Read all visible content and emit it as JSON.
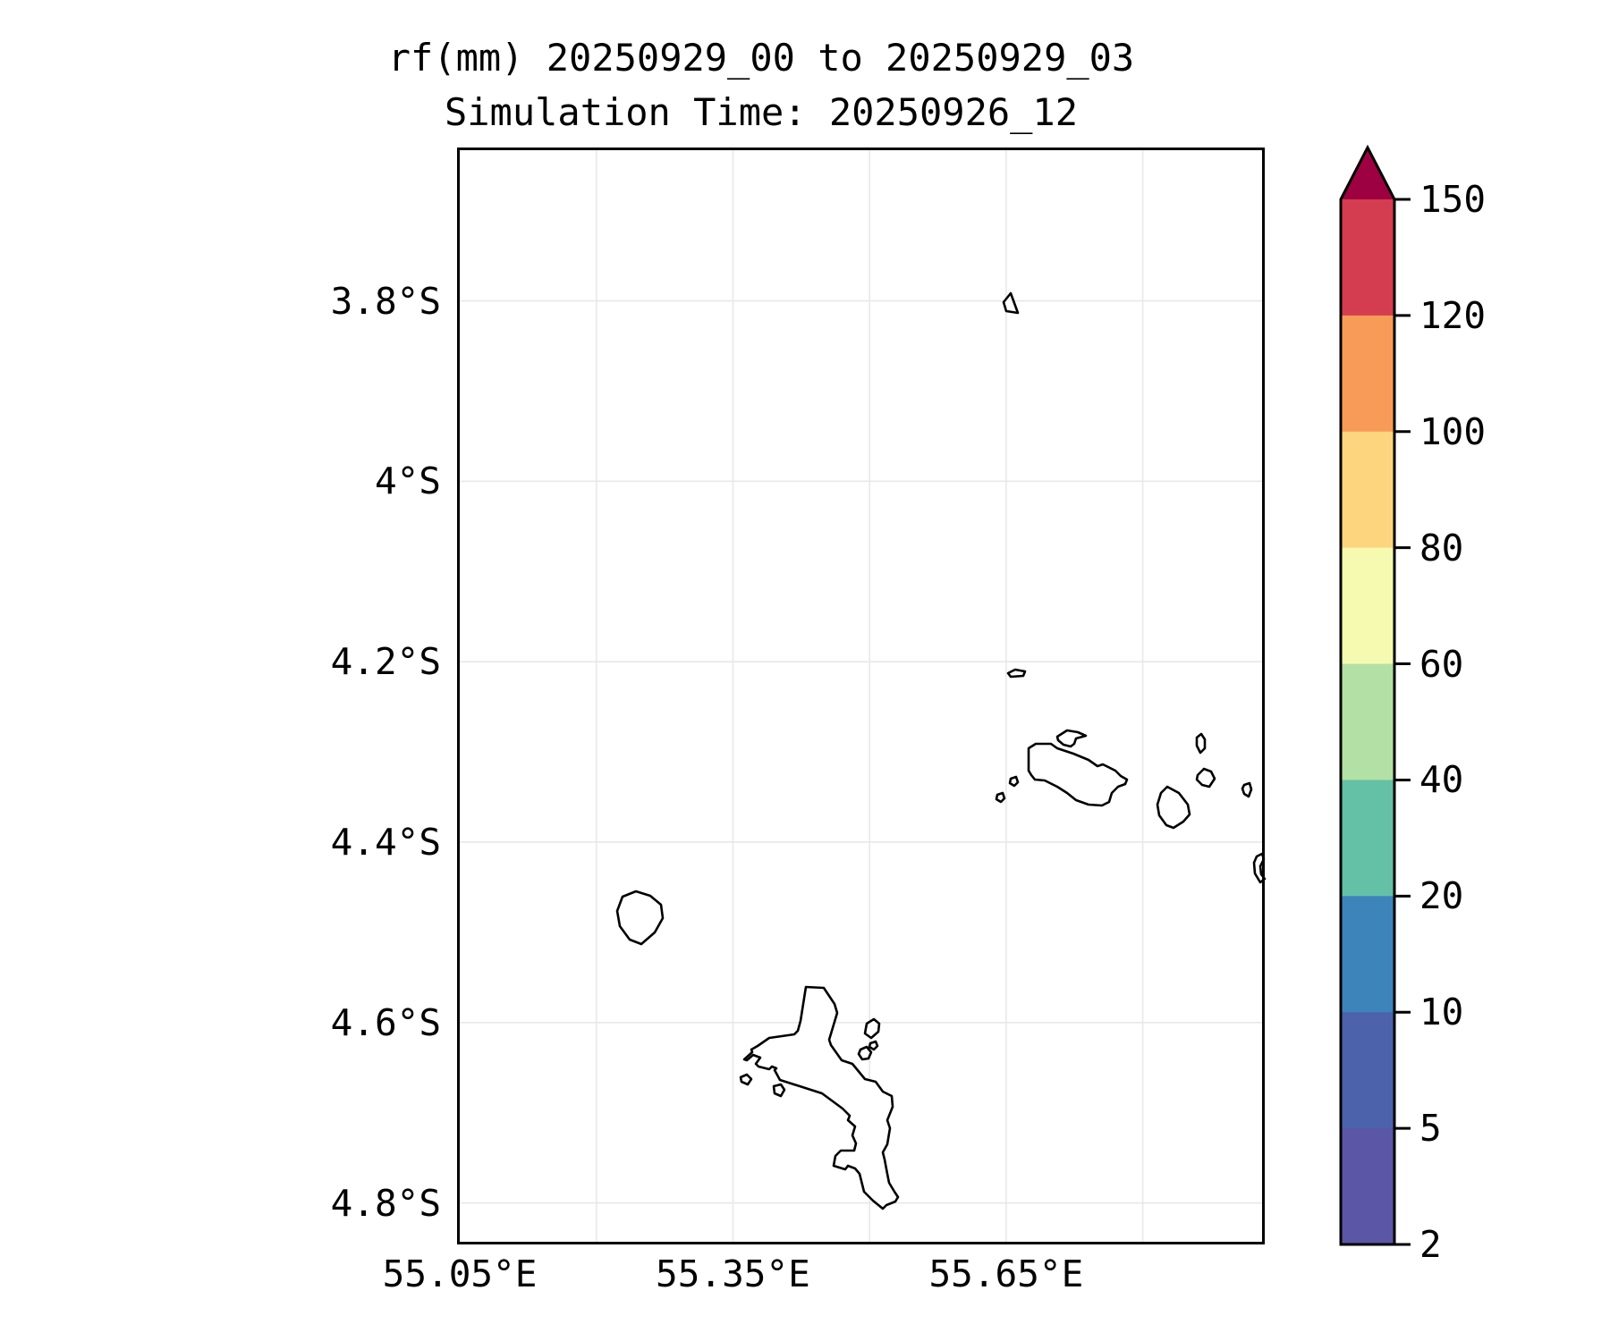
{
  "title": {
    "line1": "rf(mm) 20250929_00 to 20250929_03",
    "line2": "Simulation Time: 20250926_12"
  },
  "map": {
    "extent": {
      "lon_min": 55.047,
      "lon_max": 55.934,
      "lat_min_s": 3.63,
      "lat_max_s": 4.846
    },
    "x_ticks": [
      {
        "label": "55.05°E",
        "lon": 55.05
      },
      {
        "label": "55.35°E",
        "lon": 55.35
      },
      {
        "label": "55.65°E",
        "lon": 55.65
      }
    ],
    "y_ticks": [
      {
        "label": "3.8°S",
        "lat": 3.8
      },
      {
        "label": "4°S",
        "lat": 4.0
      },
      {
        "label": "4.2°S",
        "lat": 4.2
      },
      {
        "label": "4.4°S",
        "lat": 4.4
      },
      {
        "label": "4.6°S",
        "lat": 4.6
      },
      {
        "label": "4.8°S",
        "lat": 4.8
      }
    ],
    "gridline_lons": [
      55.2,
      55.35,
      55.5,
      55.65,
      55.8
    ],
    "gridline_lats": [
      3.8,
      4.0,
      4.2,
      4.4,
      4.6,
      4.8
    ],
    "gridline_color": "#e8e8e8",
    "coastline_color": "#000000"
  },
  "colorbar": {
    "levels": [
      2,
      5,
      10,
      20,
      40,
      60,
      80,
      100,
      120,
      150
    ],
    "colors_bottom_to_top": [
      "#5b56a6",
      "#4c63ac",
      "#3d84bb",
      "#64c1a5",
      "#b3e0a5",
      "#f5fab0",
      "#fdd57f",
      "#f89b58",
      "#d33d4f"
    ],
    "over_color": "#9e0142",
    "tick_labels": [
      "150",
      "120",
      "100",
      "80",
      "60",
      "40",
      "20",
      "10",
      "5",
      "2"
    ]
  },
  "chart_data": {
    "type": "heatmap",
    "variable": "rf(mm)",
    "accumulation_period": "20250929_00 to 20250929_03",
    "simulation_time": "20250926_12",
    "lon_range_e": [
      55.05,
      55.93
    ],
    "lat_range_s": [
      3.63,
      4.85
    ],
    "levels_mm": [
      2,
      5,
      10,
      20,
      40,
      60,
      80,
      100,
      120,
      150
    ],
    "rainfall_field": "no rainfall at or above the lowest contour level (2 mm) anywhere in the domain; map area is blank white with coastlines only",
    "coastlines": [
      {
        "name": "denis-island",
        "points": [
          [
            619,
            163
          ],
          [
            611,
            173
          ],
          [
            614,
            183
          ],
          [
            627,
            185
          ]
        ]
      },
      {
        "name": "aride-island",
        "points": [
          [
            616,
            588
          ],
          [
            624,
            584
          ],
          [
            635,
            586
          ],
          [
            633,
            591
          ],
          [
            619,
            592
          ]
        ]
      },
      {
        "name": "curieuse-island",
        "points": [
          [
            671,
            659
          ],
          [
            682,
            652
          ],
          [
            694,
            654
          ],
          [
            703,
            658
          ],
          [
            692,
            661
          ],
          [
            690,
            667
          ],
          [
            686,
            670
          ],
          [
            678,
            668
          ],
          [
            672,
            663
          ]
        ]
      },
      {
        "name": "praslin-island",
        "points": [
          [
            639,
            672
          ],
          [
            647,
            667
          ],
          [
            664,
            667
          ],
          [
            671,
            672
          ],
          [
            689,
            678
          ],
          [
            706,
            685
          ],
          [
            716,
            692
          ],
          [
            722,
            690
          ],
          [
            736,
            697
          ],
          [
            742,
            703
          ],
          [
            749,
            707
          ],
          [
            747,
            712
          ],
          [
            739,
            715
          ],
          [
            732,
            722
          ],
          [
            729,
            732
          ],
          [
            721,
            736
          ],
          [
            706,
            735
          ],
          [
            692,
            730
          ],
          [
            682,
            722
          ],
          [
            671,
            715
          ],
          [
            657,
            708
          ],
          [
            646,
            707
          ],
          [
            642,
            702
          ],
          [
            639,
            697
          ]
        ]
      },
      {
        "name": "cousin-island",
        "points": [
          [
            619,
            706
          ],
          [
            625,
            704
          ],
          [
            627,
            710
          ],
          [
            623,
            714
          ],
          [
            618,
            711
          ]
        ]
      },
      {
        "name": "cousine-island",
        "points": [
          [
            604,
            724
          ],
          [
            610,
            722
          ],
          [
            612,
            728
          ],
          [
            608,
            732
          ],
          [
            603,
            729
          ]
        ]
      },
      {
        "name": "grande-soeur-island",
        "points": [
          [
            827,
            660
          ],
          [
            832,
            656
          ],
          [
            836,
            662
          ],
          [
            836,
            672
          ],
          [
            831,
            677
          ],
          [
            827,
            669
          ]
        ]
      },
      {
        "name": "felicite-island",
        "points": [
          [
            828,
            702
          ],
          [
            835,
            695
          ],
          [
            843,
            698
          ],
          [
            847,
            706
          ],
          [
            841,
            715
          ],
          [
            833,
            713
          ],
          [
            827,
            707
          ]
        ]
      },
      {
        "name": "la-digue-island",
        "points": [
          [
            794,
            715
          ],
          [
            807,
            722
          ],
          [
            817,
            735
          ],
          [
            819,
            746
          ],
          [
            812,
            754
          ],
          [
            801,
            761
          ],
          [
            793,
            758
          ],
          [
            785,
            747
          ],
          [
            783,
            735
          ],
          [
            787,
            722
          ]
        ]
      },
      {
        "name": "marianne-island",
        "points": [
          [
            880,
            713
          ],
          [
            886,
            711
          ],
          [
            888,
            718
          ],
          [
            885,
            726
          ],
          [
            880,
            723
          ],
          [
            878,
            717
          ]
        ]
      },
      {
        "name": "silhouette-island",
        "points": [
          [
            185,
            838
          ],
          [
            200,
            832
          ],
          [
            216,
            837
          ],
          [
            228,
            847
          ],
          [
            230,
            862
          ],
          [
            221,
            878
          ],
          [
            206,
            891
          ],
          [
            193,
            886
          ],
          [
            182,
            871
          ],
          [
            179,
            854
          ]
        ]
      },
      {
        "name": "mahe-island",
        "points": [
          [
            390,
            939
          ],
          [
            410,
            940
          ],
          [
            422,
            958
          ],
          [
            425,
            968
          ],
          [
            416,
            998
          ],
          [
            418,
            1004
          ],
          [
            430,
            1021
          ],
          [
            442,
            1025
          ],
          [
            456,
            1042
          ],
          [
            468,
            1045
          ],
          [
            476,
            1056
          ],
          [
            486,
            1061
          ],
          [
            487,
            1073
          ],
          [
            481,
            1088
          ],
          [
            484,
            1097
          ],
          [
            481,
            1115
          ],
          [
            476,
            1124
          ],
          [
            478,
            1132
          ],
          [
            481,
            1148
          ],
          [
            483,
            1158
          ],
          [
            489,
            1168
          ],
          [
            493,
            1174
          ],
          [
            490,
            1179
          ],
          [
            480,
            1183
          ],
          [
            476,
            1187
          ],
          [
            465,
            1178
          ],
          [
            455,
            1168
          ],
          [
            450,
            1148
          ],
          [
            445,
            1142
          ],
          [
            437,
            1139
          ],
          [
            434,
            1143
          ],
          [
            421,
            1139
          ],
          [
            423,
            1128
          ],
          [
            429,
            1122
          ],
          [
            444,
            1122
          ],
          [
            446,
            1114
          ],
          [
            442,
            1105
          ],
          [
            445,
            1095
          ],
          [
            437,
            1088
          ],
          [
            439,
            1083
          ],
          [
            431,
            1075
          ],
          [
            408,
            1058
          ],
          [
            361,
            1043
          ],
          [
            355,
            1032
          ],
          [
            357,
            1030
          ],
          [
            352,
            1028
          ],
          [
            349,
            1031
          ],
          [
            337,
            1028
          ],
          [
            334,
            1025
          ],
          [
            339,
            1018
          ],
          [
            331,
            1015
          ],
          [
            324,
            1021
          ],
          [
            321,
            1020
          ],
          [
            330,
            1012
          ],
          [
            329,
            1009
          ],
          [
            336,
            1005
          ],
          [
            349,
            996
          ],
          [
            377,
            992
          ],
          [
            381,
            988
          ],
          [
            384,
            977
          ]
        ]
      },
      {
        "name": "st-anne-island",
        "points": [
          [
            458,
            980
          ],
          [
            466,
            975
          ],
          [
            472,
            980
          ],
          [
            471,
            989
          ],
          [
            463,
            996
          ],
          [
            456,
            991
          ]
        ]
      },
      {
        "name": "cerf-island",
        "points": [
          [
            451,
            1009
          ],
          [
            458,
            1006
          ],
          [
            463,
            1012
          ],
          [
            460,
            1019
          ],
          [
            453,
            1020
          ],
          [
            449,
            1014
          ]
        ]
      },
      {
        "name": "cerf-islet",
        "points": [
          [
            462,
            1002
          ],
          [
            468,
            1000
          ],
          [
            470,
            1005
          ],
          [
            466,
            1009
          ],
          [
            461,
            1006
          ]
        ]
      },
      {
        "name": "therese-island",
        "points": [
          [
            317,
            1040
          ],
          [
            324,
            1037
          ],
          [
            329,
            1042
          ],
          [
            325,
            1048
          ],
          [
            318,
            1045
          ]
        ]
      },
      {
        "name": "conception-island",
        "points": [
          [
            354,
            1050
          ],
          [
            362,
            1048
          ],
          [
            366,
            1054
          ],
          [
            362,
            1061
          ],
          [
            355,
            1058
          ]
        ]
      },
      {
        "name": "east-edge-islet",
        "points": [
          [
            894,
            793
          ],
          [
            900,
            790
          ],
          [
            902,
            796
          ],
          [
            898,
            804
          ],
          [
            899,
            813
          ],
          [
            903,
            818
          ],
          [
            898,
            822
          ],
          [
            892,
            812
          ],
          [
            891,
            800
          ]
        ]
      }
    ],
    "coastline_units": "pixels within 903x1227 map frame"
  }
}
